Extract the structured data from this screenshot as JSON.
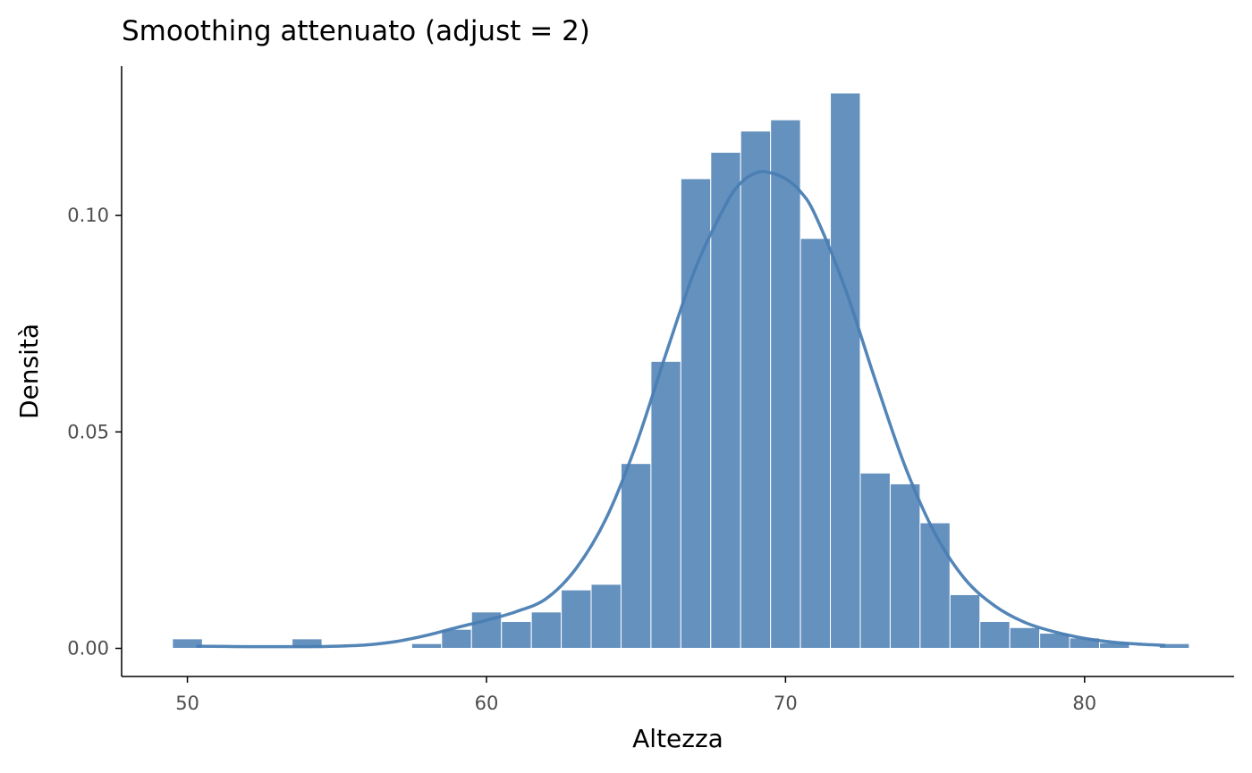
{
  "chart_data": {
    "type": "bar",
    "title": "Smoothing attenuato (adjust = 2)",
    "xlabel": "Altezza",
    "ylabel": "Densità",
    "xlim": [
      47.8,
      85.0
    ],
    "ylim": [
      -0.0065,
      0.1345
    ],
    "x_ticks": [
      50,
      60,
      70,
      80
    ],
    "y_ticks": [
      0.0,
      0.05,
      0.1
    ],
    "x_tick_labels": [
      "50",
      "60",
      "70",
      "80"
    ],
    "y_tick_labels": [
      "0.00",
      "0.05",
      "0.10"
    ],
    "grid": false,
    "legend": "none",
    "colors": {
      "bars": "#4a7eb3",
      "bar_opacity": 0.85,
      "curve": "#4a7eb3",
      "bar_edge": "#ffffff"
    },
    "histogram": {
      "bin_width": 1.0,
      "bin_centers": [
        50,
        51,
        52,
        53,
        54,
        55,
        56,
        57,
        58,
        59,
        60,
        61,
        62,
        63,
        64,
        65,
        66,
        67,
        68,
        69,
        70,
        71,
        72,
        73,
        74,
        75,
        76,
        77,
        78,
        79,
        80,
        81,
        82,
        83
      ],
      "density": [
        0.0022,
        0,
        0,
        0,
        0.0022,
        0,
        0,
        0,
        0.0011,
        0.0044,
        0.0084,
        0.0062,
        0.0084,
        0.0135,
        0.0148,
        0.0427,
        0.0663,
        0.1085,
        0.1146,
        0.1195,
        0.1221,
        0.0947,
        0.1283,
        0.0405,
        0.038,
        0.029,
        0.0124,
        0.0062,
        0.0048,
        0.0035,
        0.0024,
        0.0013,
        0,
        0.0011
      ]
    },
    "density_curve": {
      "x": [
        50.3,
        52,
        54,
        55,
        56,
        57,
        58,
        59,
        60,
        61,
        62,
        63,
        64,
        65,
        66,
        67,
        68,
        68.5,
        69,
        69.4,
        70,
        70.5,
        71,
        72,
        73,
        74,
        75,
        76,
        77,
        78,
        79,
        80,
        81,
        82,
        82.7
      ],
      "y": [
        0.0005,
        0.0004,
        0.0004,
        0.0005,
        0.0008,
        0.0016,
        0.003,
        0.0048,
        0.0065,
        0.0085,
        0.0115,
        0.0185,
        0.03,
        0.047,
        0.068,
        0.088,
        0.1025,
        0.1075,
        0.1098,
        0.11,
        0.1085,
        0.1055,
        0.1,
        0.083,
        0.062,
        0.042,
        0.0265,
        0.016,
        0.0098,
        0.006,
        0.0038,
        0.0023,
        0.0014,
        0.0009,
        0.0007
      ]
    }
  }
}
